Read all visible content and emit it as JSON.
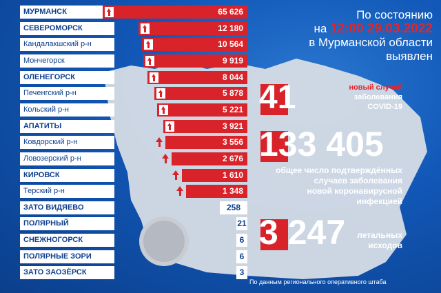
{
  "header": {
    "line1": "По состоянию",
    "line2_prefix": "на",
    "line2_time": "12:00 29.03.2022",
    "line3": "в Мурманской области",
    "line4": "выявлен"
  },
  "stats": {
    "new_value": "41",
    "new_caption_line1": "новый случай",
    "new_caption_line2": "заболевания",
    "new_caption_line3": "COVID-19",
    "total_value": "133 405",
    "total_caption_line1": "общее число подтверждённых",
    "total_caption_line2": "случаев заболевания",
    "total_caption_line3": "новой коронавирусной",
    "total_caption_line4": "инфекцией",
    "deaths_value": "3 247",
    "deaths_caption_line1": "летальных",
    "deaths_caption_line2": "исходов"
  },
  "footer": "По данным регионального оперативного штаба",
  "chart_data": {
    "type": "bar",
    "categories": [
      "МУРМАНСК",
      "СЕВЕРОМОРСК",
      "Кандалакшский р-н",
      "Мончегорск",
      "ОЛЕНЕГОРСК",
      "Печенгский р-н",
      "Кольский р-н",
      "АПАТИТЫ",
      "Ковдорский р-н",
      "Ловозерский р-н",
      "КИРОВСК",
      "Терский р-н",
      "ЗАТО ВИДЯЕВО",
      "ПОЛЯРНЫЙ",
      "СНЕЖНОГОРСК",
      "ПОЛЯРНЫЕ ЗОРИ",
      "ЗАТО ЗАОЗЁРСК"
    ],
    "labels": [
      "65 626",
      "12 180",
      "10 564",
      "9 919",
      "8 044",
      "5 878",
      "5 221",
      "3 921",
      "3 556",
      "2 676",
      "1 610",
      "1 348",
      "258",
      "21",
      "6",
      "6",
      "3"
    ],
    "values": [
      65626,
      12180,
      10564,
      9919,
      8044,
      5878,
      5221,
      3921,
      3556,
      2676,
      1610,
      1348,
      258,
      21,
      6,
      6,
      3
    ],
    "title": "",
    "xlabel": "",
    "ylabel": ""
  },
  "colors": {
    "accent": "#d8232a",
    "background": "#0d4aa0",
    "label_text": "#0d3f91"
  }
}
